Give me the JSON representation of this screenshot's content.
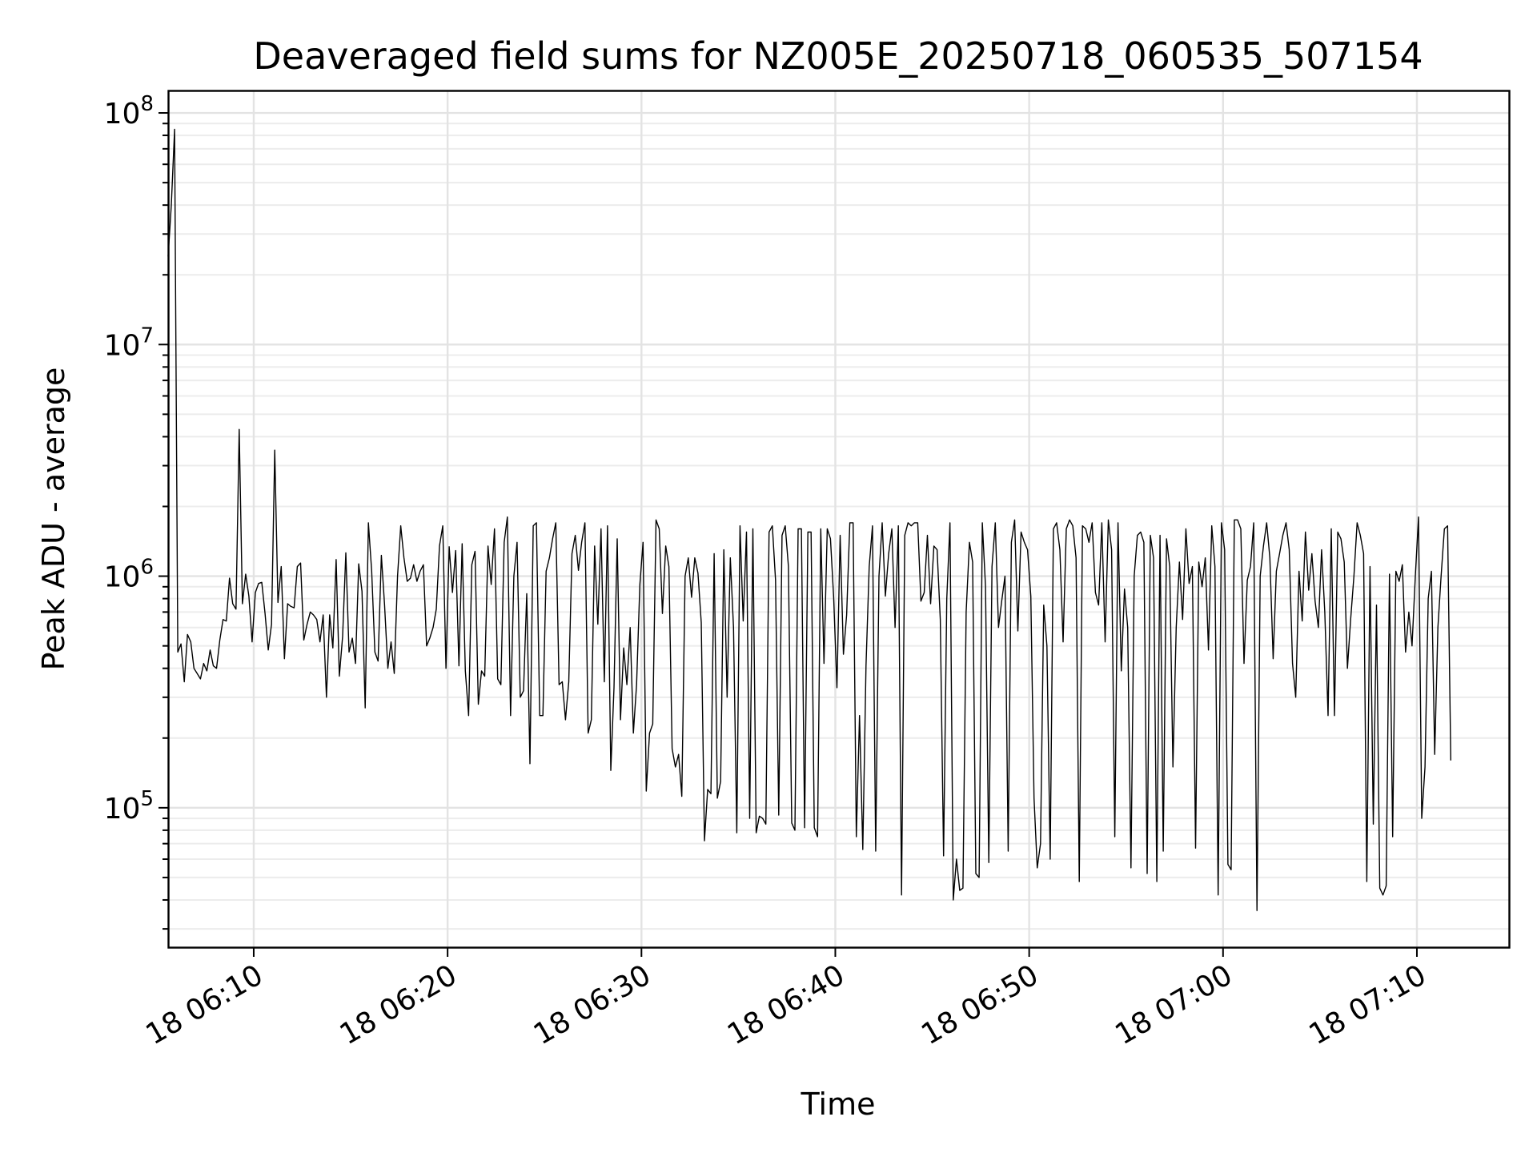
{
  "chart_data": {
    "type": "line",
    "title": "Deaveraged field sums for NZ005E_20250718_060535_507154",
    "xlabel": "Time",
    "ylabel": "Peak ADU - average",
    "yscale": "log",
    "ylim": [
      25000,
      125000000
    ],
    "xlim": [
      "2025-07-18 06:05:35",
      "2025-07-18 07:14:45"
    ],
    "grid": true,
    "grid_minor": true,
    "x_ticks": [
      {
        "value": "2025-07-18 06:10:00",
        "label": "18 06:10"
      },
      {
        "value": "2025-07-18 06:20:00",
        "label": "18 06:20"
      },
      {
        "value": "2025-07-18 06:30:00",
        "label": "18 06:30"
      },
      {
        "value": "2025-07-18 06:40:00",
        "label": "18 06:40"
      },
      {
        "value": "2025-07-18 06:50:00",
        "label": "18 06:50"
      },
      {
        "value": "2025-07-18 07:00:00",
        "label": "18 07:00"
      },
      {
        "value": "2025-07-18 07:10:00",
        "label": "18 07:10"
      }
    ],
    "y_ticks": [
      {
        "value": 100000,
        "base": "10",
        "exp": "5"
      },
      {
        "value": 1000000,
        "base": "10",
        "exp": "6"
      },
      {
        "value": 10000000,
        "base": "10",
        "exp": "7"
      },
      {
        "value": 100000000,
        "base": "10",
        "exp": "8"
      }
    ],
    "series": [
      {
        "color": "#000000",
        "start": "2025-07-18 06:05:35",
        "step_seconds": 10,
        "values": [
          24000000,
          40000000,
          85000000,
          470000,
          510000,
          350000,
          560000,
          520000,
          400000,
          380000,
          360000,
          420000,
          390000,
          480000,
          410000,
          400000,
          530000,
          650000,
          640000,
          980000,
          760000,
          720000,
          4300000,
          760000,
          1020000,
          820000,
          520000,
          850000,
          930000,
          940000,
          690000,
          480000,
          620000,
          3500000,
          770000,
          1100000,
          440000,
          760000,
          740000,
          730000,
          1100000,
          1140000,
          530000,
          620000,
          700000,
          680000,
          650000,
          520000,
          680000,
          300000,
          680000,
          490000,
          1180000,
          370000,
          550000,
          1260000,
          470000,
          540000,
          420000,
          1130000,
          860000,
          270000,
          1700000,
          1050000,
          470000,
          430000,
          1230000,
          750000,
          400000,
          520000,
          380000,
          1000000,
          1650000,
          1200000,
          950000,
          980000,
          1120000,
          950000,
          1050000,
          1120000,
          500000,
          540000,
          600000,
          720000,
          1350000,
          1650000,
          400000,
          1340000,
          850000,
          1290000,
          410000,
          1380000,
          390000,
          250000,
          1120000,
          1280000,
          280000,
          390000,
          370000,
          1350000,
          920000,
          1600000,
          360000,
          340000,
          1400000,
          1800000,
          250000,
          1000000,
          1400000,
          300000,
          320000,
          840000,
          155000,
          1650000,
          1700000,
          250000,
          250000,
          1050000,
          1200000,
          1450000,
          1700000,
          340000,
          350000,
          240000,
          350000,
          1250000,
          1500000,
          1060000,
          1400000,
          1700000,
          210000,
          240000,
          1350000,
          620000,
          1600000,
          350000,
          1650000,
          145000,
          330000,
          1450000,
          240000,
          490000,
          340000,
          600000,
          210000,
          340000,
          920000,
          1400000,
          118000,
          210000,
          230000,
          1750000,
          1600000,
          690000,
          1350000,
          1100000,
          180000,
          150000,
          170000,
          112000,
          1000000,
          1200000,
          810000,
          1200000,
          1030000,
          630000,
          72000,
          120000,
          115000,
          1250000,
          110000,
          130000,
          1300000,
          300000,
          1200000,
          600000,
          78000,
          1650000,
          640000,
          1550000,
          90000,
          1600000,
          78000,
          92000,
          90000,
          85000,
          1550000,
          1650000,
          960000,
          93000,
          1500000,
          1650000,
          1100000,
          86000,
          80000,
          1600000,
          1600000,
          82000,
          1550000,
          1550000,
          82000,
          75000,
          1600000,
          420000,
          1600000,
          1450000,
          810000,
          330000,
          1500000,
          460000,
          680000,
          1700000,
          1700000,
          75000,
          250000,
          66000,
          410000,
          1100000,
          1650000,
          65000,
          1000000,
          1700000,
          820000,
          1250000,
          1600000,
          600000,
          1650000,
          42000,
          1500000,
          1700000,
          1650000,
          1700000,
          1700000,
          780000,
          850000,
          1500000,
          760000,
          1350000,
          1300000,
          650000,
          62000,
          800000,
          1700000,
          40000,
          60000,
          44000,
          45000,
          700000,
          1400000,
          1150000,
          52000,
          50000,
          1700000,
          900000,
          58000,
          1100000,
          1700000,
          600000,
          780000,
          1000000,
          65000,
          1400000,
          1750000,
          580000,
          1550000,
          1400000,
          1300000,
          820000,
          110000,
          55000,
          70000,
          750000,
          500000,
          60000,
          1600000,
          1700000,
          1300000,
          520000,
          1600000,
          1750000,
          1650000,
          1200000,
          48000,
          1650000,
          1600000,
          1400000,
          1700000,
          850000,
          750000,
          1700000,
          520000,
          1750000,
          1300000,
          75000,
          1700000,
          390000,
          880000,
          600000,
          55000,
          1000000,
          1500000,
          1550000,
          1400000,
          52000,
          1500000,
          1200000,
          48000,
          1500000,
          65000,
          1450000,
          1100000,
          150000,
          600000,
          1150000,
          650000,
          1600000,
          930000,
          1100000,
          67000,
          1150000,
          900000,
          1200000,
          480000,
          1650000,
          1100000,
          42000,
          1700000,
          1300000,
          57000,
          54000,
          1750000,
          1750000,
          1600000,
          420000,
          960000,
          1100000,
          1700000,
          36000,
          1000000,
          1350000,
          1700000,
          1200000,
          440000,
          1050000,
          1250000,
          1500000,
          1700000,
          1300000,
          420000,
          300000,
          1050000,
          640000,
          1550000,
          870000,
          1250000,
          780000,
          600000,
          1300000,
          700000,
          250000,
          1600000,
          250000,
          1550000,
          1450000,
          1150000,
          400000,
          650000,
          1000000,
          1700000,
          1500000,
          1250000,
          48000,
          1100000,
          85000,
          750000,
          45000,
          42000,
          46000,
          1020000,
          75000,
          1050000,
          950000,
          1120000,
          470000,
          700000,
          500000,
          1000000,
          1800000,
          90000,
          150000,
          800000,
          1050000,
          170000,
          600000,
          1000000,
          1600000,
          1650000,
          160000
        ]
      }
    ]
  }
}
